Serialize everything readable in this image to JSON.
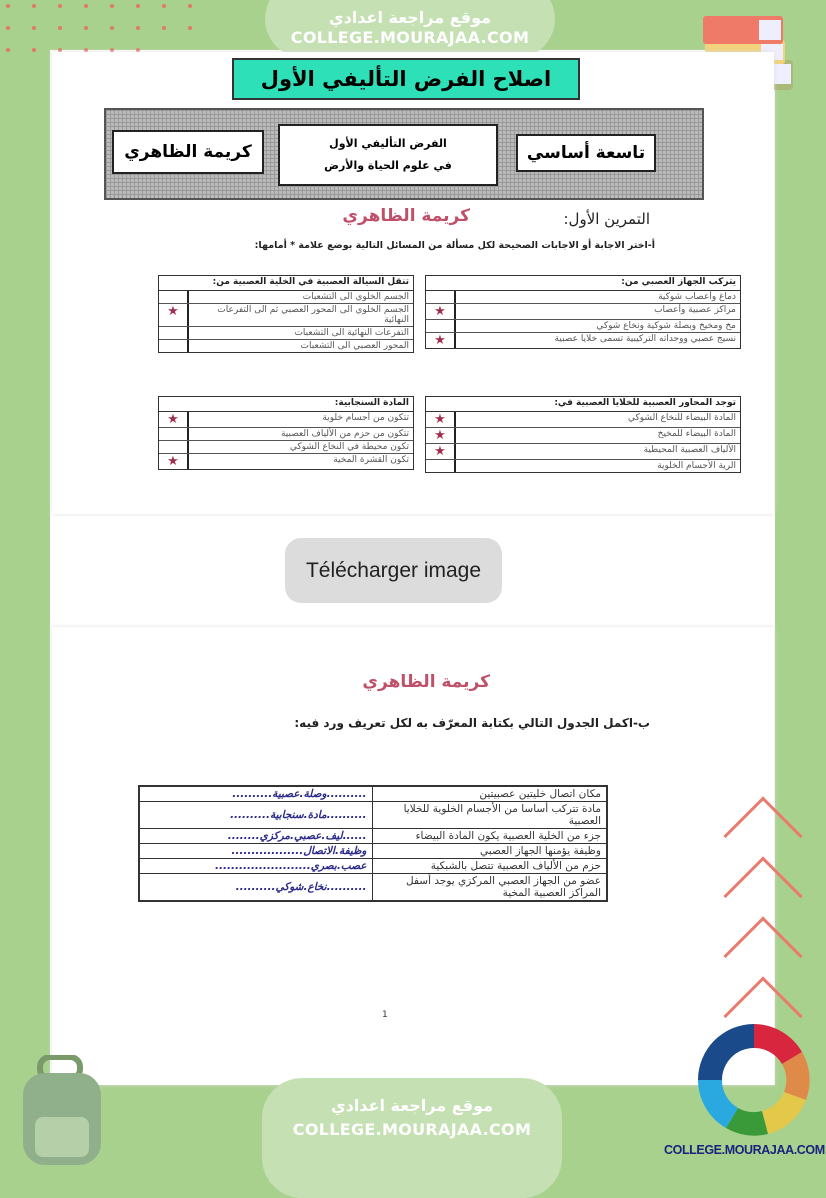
{
  "site": {
    "name_ar": "موقع مراجعة اعدادي",
    "domain": "COLLEGE.MOURAJAA.COM",
    "logo_text": "COLLEGE.MOURAJAA.COM"
  },
  "colors": {
    "frame": "#a9d18e",
    "pill": "#c5e0b3",
    "title_bg": "#2ee0b8",
    "mark": "#a03050",
    "answer": "#2b2a8a",
    "watermark": "#c0506a"
  },
  "doc": {
    "title": "اصلاح الفرض التأليفي الأول",
    "header": {
      "student": "كريمة الظاهري",
      "exam_line1": "الفرض التأليفي الأول",
      "exam_line2": "في علوم الحياة والأرض",
      "level": "تاسعة أساسي"
    },
    "watermark": "كريمة الظاهري",
    "exercise_title": "التمرين الأول:",
    "instruction_a": "أ-اختر الاجابة أو الاجابات الصحيحة لكل مسألة من المسائل التالية بوضع علامة * أمامها:",
    "mark_symbol": "★",
    "questions": [
      {
        "head": "يتركب الجهاز العصبي من:",
        "options": [
          {
            "text": "دماغ وأعصاب شوكية",
            "marked": false
          },
          {
            "text": "مراكز عصبية وأعصاب",
            "marked": true
          },
          {
            "text": "مخ ومخيخ وبصلة شوكية ونخاع شوكي",
            "marked": false
          },
          {
            "text": "نسيج عصبي ووحداته التركيبية تسمى خلايا عصبية",
            "marked": true
          }
        ]
      },
      {
        "head": "تنقل السيالة العصبية في الخلية العصبية من:",
        "options": [
          {
            "text": "الجسم الخلوي الى التشعبات",
            "marked": false
          },
          {
            "text": "الجسم الخلوي الى المحور العصبي ثم الى التفرعات النهائية",
            "marked": true
          },
          {
            "text": "التفرعات النهائية الى التشعبات",
            "marked": false
          },
          {
            "text": "المحور العصبي الى التشعبات",
            "marked": false
          }
        ]
      },
      {
        "head": "توجد المحاور العصبية للخلايا العصبية في:",
        "options": [
          {
            "text": "المادة البيضاء للنخاع الشوكي",
            "marked": true
          },
          {
            "text": "المادة البيضاء للمخيخ",
            "marked": true
          },
          {
            "text": "الألياف العصبية المحيطية",
            "marked": true
          },
          {
            "text": "الرية الأجسام الخلوية",
            "marked": false
          }
        ]
      },
      {
        "head": "المادة السنجابية:",
        "options": [
          {
            "text": "تتكون من أجسام خلوية",
            "marked": true
          },
          {
            "text": "تتكون من حزم من الألياف العصبية",
            "marked": false
          },
          {
            "text": "تكون محيطة في النخاع الشوكي",
            "marked": false
          },
          {
            "text": "تكون القشرة المخية",
            "marked": true
          }
        ]
      }
    ],
    "download_button": "Télécharger image",
    "instruction_b": "ب-اكمل الجدول التالي بكتابة المعرّف به لكل تعريف ورد فيه:",
    "definitions": [
      {
        "definition": "مكان اتصال خليتين عصبيتين",
        "answer": "..........وصلة.عصبية.........."
      },
      {
        "definition": "مادة تتركب أساسا من الأجسام الخلوية للخلايا العصبية",
        "answer": "..........مادة.سنجابية.........."
      },
      {
        "definition": "جزء من الخلية العصبية يكون المادة البيضاء",
        "answer": "......ليف.عصبي.مركزي........"
      },
      {
        "definition": "وظيفة يؤمنها الجهاز العصبي",
        "answer": "وظيفة.الاتصال.................."
      },
      {
        "definition": "حزم من الألياف العصبية تتصل بالشبكية",
        "answer": "عصب.بصري........................"
      },
      {
        "definition": "عضو من الجهاز العصبي المركزي يوجد أسفل المراكز العصبية المخية",
        "answer": "..........نخاع.شوكي.........."
      }
    ],
    "page_number": "1"
  }
}
